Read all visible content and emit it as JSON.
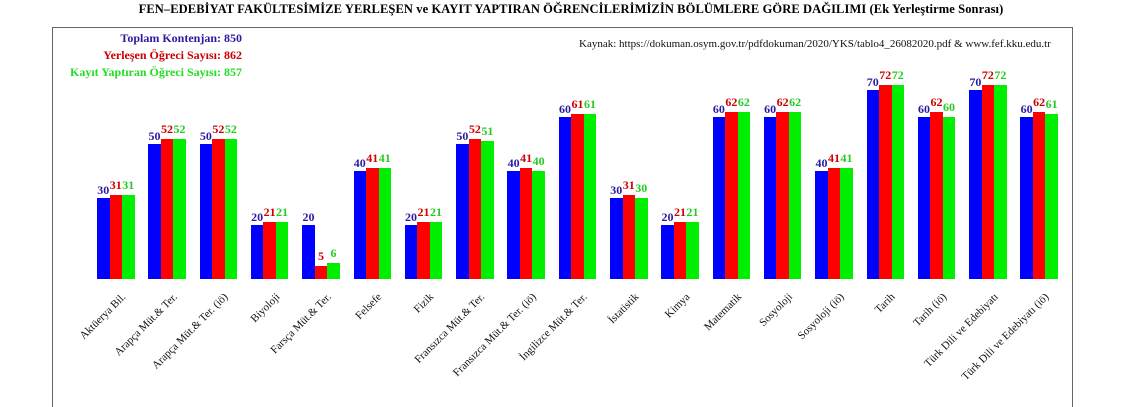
{
  "title": "FEN–EDEBİYAT FAKÜLTESİMİZE YERLEŞEN ve KAYIT YAPTIRAN ÖĞRENCİLERİMİZİN BÖLÜMLERE GÖRE DAĞILIMI (Ek Yerleştirme Sonrası)",
  "legend": {
    "quota": "Toplam Kontenjan: 850",
    "placed": "Yerleşen Öğreci Sayısı: 862",
    "enrolled": "Kayıt Yaptıran Öğreci Sayısı: 857"
  },
  "source": "Kaynak: https://dokuman.osym.gov.tr/pdfdokuman/2020/YKS/tablo4_26082020.pdf & www.fef.kku.edu.tr",
  "colors": {
    "quota": "#0000ff",
    "placed": "#ff0000",
    "enrolled": "#00ee00",
    "quota_text": "#2a1aa0",
    "placed_text": "#cc0000",
    "enrolled_text": "#22cc22"
  },
  "chart_data": {
    "type": "bar",
    "title": "FEN–EDEBİYAT FAKÜLTESİMİZE YERLEŞEN ve KAYIT YAPTIRAN ÖĞRENCİLERİMİZİN BÖLÜMLERE GÖRE DAĞILIMI (Ek Yerleştirme Sonrası)",
    "xlabel": "",
    "ylabel": "",
    "grid": false,
    "legend_position": "top-left",
    "categories": [
      "Aktüerya Bil.",
      "Arapça Müt.& Ter.",
      "Arapça Müt.& Ter. (iö)",
      "Biyoloji",
      "Farsça Müt.& Ter.",
      "Felsefe",
      "Fizik",
      "Fransızca Müt.& Ter.",
      "Fransızca Müt.& Ter. (iö)",
      "İngilizce Müt.& Ter.",
      "İstatistik",
      "Kimya",
      "Matematik",
      "Sosyoloji",
      "Sosyoloji (iö)",
      "Tarih",
      "Tarih (iö)",
      "Türk Dili ve Edebiyatı",
      "Türk Dili ve Edebiyatı (iö)"
    ],
    "series": [
      {
        "name": "Toplam Kontenjan",
        "total": 850,
        "values": [
          30,
          50,
          50,
          20,
          20,
          40,
          20,
          50,
          40,
          60,
          30,
          20,
          60,
          60,
          40,
          70,
          60,
          70,
          60
        ]
      },
      {
        "name": "Yerleşen Öğreci Sayısı",
        "total": 862,
        "values": [
          31,
          52,
          52,
          21,
          5,
          41,
          21,
          52,
          41,
          61,
          31,
          21,
          62,
          62,
          41,
          72,
          62,
          72,
          62
        ]
      },
      {
        "name": "Kayıt Yaptıran Öğreci Sayısı",
        "total": 857,
        "values": [
          31,
          52,
          52,
          21,
          6,
          41,
          21,
          51,
          40,
          61,
          30,
          21,
          62,
          62,
          41,
          72,
          60,
          72,
          61
        ]
      }
    ],
    "ylim": [
      0,
      75
    ]
  }
}
